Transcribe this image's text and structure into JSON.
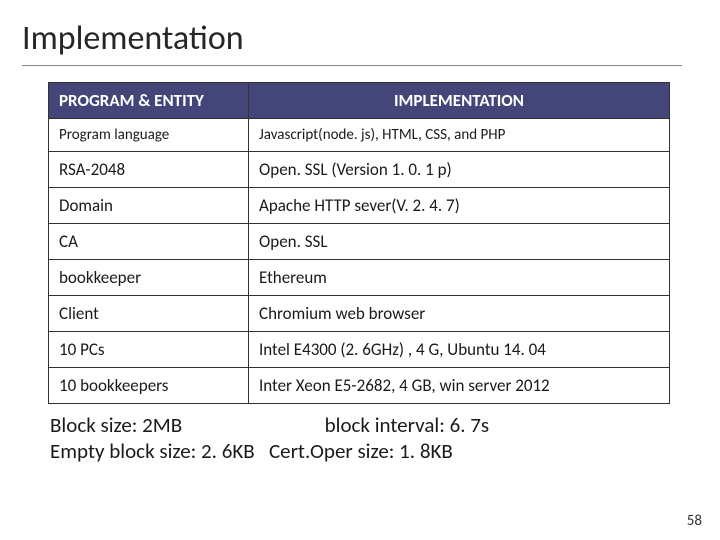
{
  "title": "Implementation",
  "table": {
    "header": {
      "col1": "PROGRAM & ENTITY",
      "col2": "IMPLEMENTATION"
    },
    "rows": [
      {
        "c1": "Program language",
        "c2": "Javascript(node. js), HTML, CSS, and PHP",
        "small": true
      },
      {
        "c1": "RSA-2048",
        "c2": "Open. SSL (Version 1. 0. 1 p)"
      },
      {
        "c1": "Domain",
        "c2": "Apache HTTP sever(V. 2. 4. 7)"
      },
      {
        "c1": "CA",
        "c2": "Open. SSL"
      },
      {
        "c1": "bookkeeper",
        "c2": "Ethereum"
      },
      {
        "c1": "Client",
        "c2": "Chromium web browser"
      },
      {
        "c1": "10 PCs",
        "c2": "Intel E4300 (2. 6GHz) ,  4 G, Ubuntu 14. 04"
      },
      {
        "c1": "10 bookkeepers",
        "c2": "Inter Xeon E5-2682, 4 GB, win server 2012"
      }
    ]
  },
  "notes": {
    "line1": "Block size: 2MB                              block interval: 6. 7s",
    "line2": "Empty block size: 2. 6KB   Cert.Oper size: 1. 8KB"
  },
  "page_number": "58",
  "colors": {
    "header_bg": "#44467a",
    "header_fg": "#ffffff",
    "border": "#333333",
    "text": "#1a1a1a"
  }
}
